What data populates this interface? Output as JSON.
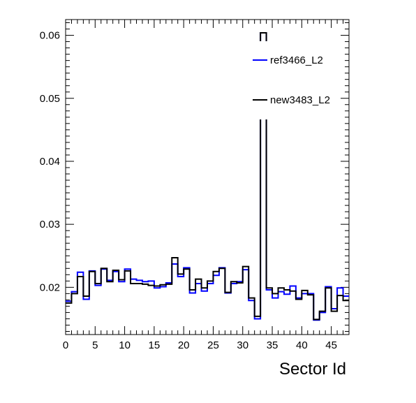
{
  "chart_data": {
    "type": "line",
    "step": true,
    "title": "",
    "xlabel": "Sector Id",
    "ylabel": "",
    "xlim": [
      0,
      48
    ],
    "ylim": [
      0.0125,
      0.0625
    ],
    "x_ticks": [
      0,
      5,
      10,
      15,
      20,
      25,
      30,
      35,
      40,
      45
    ],
    "y_ticks": [
      0.02,
      0.03,
      0.04,
      0.05,
      0.06
    ],
    "x_tick_labels": [
      "0",
      "5",
      "10",
      "15",
      "20",
      "25",
      "30",
      "35",
      "40",
      "45"
    ],
    "y_tick_labels": [
      "0.02",
      "0.03",
      "0.04",
      "0.05",
      "0.06"
    ],
    "grid": false,
    "legend_position": "top-right",
    "series": [
      {
        "name": "ref3466_L2",
        "color": "#0000ff",
        "values": [
          0.0178,
          0.0193,
          0.0224,
          0.0181,
          0.0226,
          0.0203,
          0.0229,
          0.0211,
          0.0225,
          0.0209,
          0.0229,
          0.0213,
          0.0211,
          0.0209,
          0.021,
          0.0199,
          0.0201,
          0.0207,
          0.0237,
          0.0217,
          0.0231,
          0.0191,
          0.0206,
          0.0194,
          0.0206,
          0.0219,
          0.0231,
          0.0191,
          0.0206,
          0.0209,
          0.0228,
          0.0179,
          0.015,
          0.0604,
          0.0196,
          0.0183,
          0.0193,
          0.0189,
          0.0202,
          0.0183,
          0.019,
          0.019,
          0.0148,
          0.016,
          0.0201,
          0.0166,
          0.0199,
          0.0186
        ]
      },
      {
        "name": "new3483_L2",
        "color": "#000000",
        "values": [
          0.0175,
          0.019,
          0.0217,
          0.0186,
          0.0225,
          0.0206,
          0.023,
          0.0209,
          0.0227,
          0.0212,
          0.0226,
          0.0206,
          0.0206,
          0.0205,
          0.0203,
          0.0202,
          0.0204,
          0.0205,
          0.0247,
          0.0221,
          0.0229,
          0.0196,
          0.0213,
          0.0199,
          0.021,
          0.0225,
          0.023,
          0.0192,
          0.0209,
          0.0207,
          0.0233,
          0.0183,
          0.0154,
          0.0604,
          0.0199,
          0.019,
          0.0199,
          0.0196,
          0.0194,
          0.0181,
          0.0195,
          0.0188,
          0.0149,
          0.0162,
          0.0199,
          0.0162,
          0.0187,
          0.0179
        ]
      }
    ]
  }
}
